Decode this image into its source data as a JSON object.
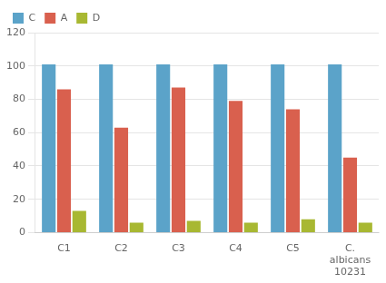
{
  "chart_data": {
    "type": "bar",
    "categories": [
      "C1",
      "C2",
      "C3",
      "C4",
      "C5",
      "C.\nalbicans\n10231"
    ],
    "series": [
      {
        "name": "C",
        "color": "#5ba3c9",
        "values": [
          101,
          101,
          101,
          101,
          101,
          101
        ]
      },
      {
        "name": "A",
        "color": "#d9604e",
        "values": [
          86,
          63,
          87,
          79,
          74,
          45
        ]
      },
      {
        "name": "D",
        "color": "#a8b832",
        "values": [
          13,
          6,
          7,
          6,
          8,
          6
        ]
      }
    ],
    "ylim": [
      0,
      120
    ],
    "yticks": [
      0,
      20,
      40,
      60,
      80,
      100,
      120
    ],
    "grid": true,
    "legend": "upper left"
  }
}
